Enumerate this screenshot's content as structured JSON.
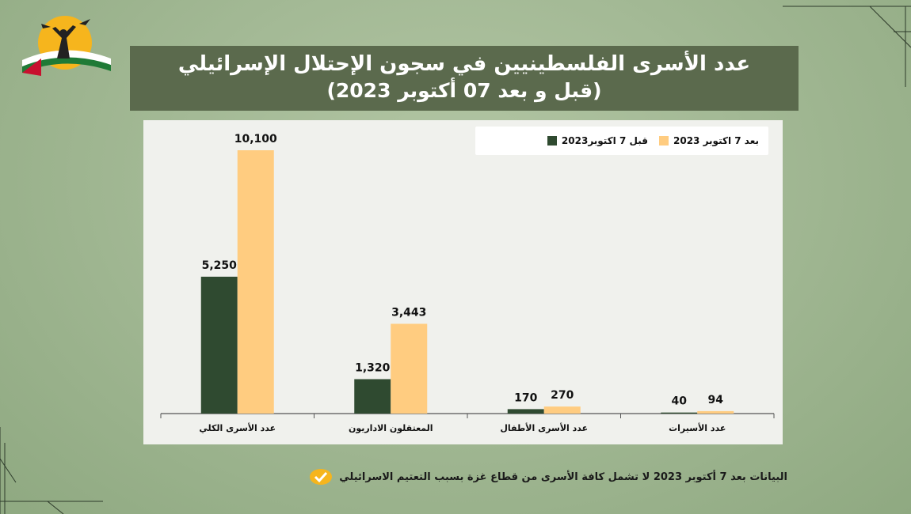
{
  "header": {
    "title_line1": "عدد الأسرى الفلسطينيين في سجون الإحتلال الإسرائيلي",
    "title_line2": "(قبل و بعد 07 أكتوبر 2023)"
  },
  "footnote": {
    "text": "البيانات بعد 7 أكتوبر 2023 لا تشمل كافة الأسرى من قطاع غزة بسبب التعتيم الاسرائيلي",
    "icon": "check-icon"
  },
  "logo": {
    "icon": "prisoners-logo-icon"
  },
  "colors": {
    "before": "#2f4a30",
    "after": "#ffcc80",
    "title_bg": "#5b6a4d",
    "panel_bg": "#f0f1ed",
    "page_bg": "#9db68f"
  },
  "chart_data": {
    "type": "bar",
    "title": "",
    "xlabel": "",
    "ylabel": "",
    "categories": [
      "عدد الأسرى الكلي",
      "المعتقلون الاداريون",
      "عدد الأسرى الأطفال",
      "عدد الأسيرات"
    ],
    "series": [
      {
        "name": "قبل 7 اكتوبر2023",
        "values": [
          5250,
          1320,
          170,
          40
        ],
        "labels": [
          "5,250",
          "1,320",
          "170",
          "40"
        ]
      },
      {
        "name": "بعد 7 اكتوبر 2023",
        "values": [
          10100,
          3443,
          270,
          94
        ],
        "labels": [
          "10,100",
          "3,443",
          "270",
          "94"
        ]
      }
    ],
    "ylim": [
      0,
      10100
    ],
    "grid": false,
    "legend": "top-right"
  }
}
